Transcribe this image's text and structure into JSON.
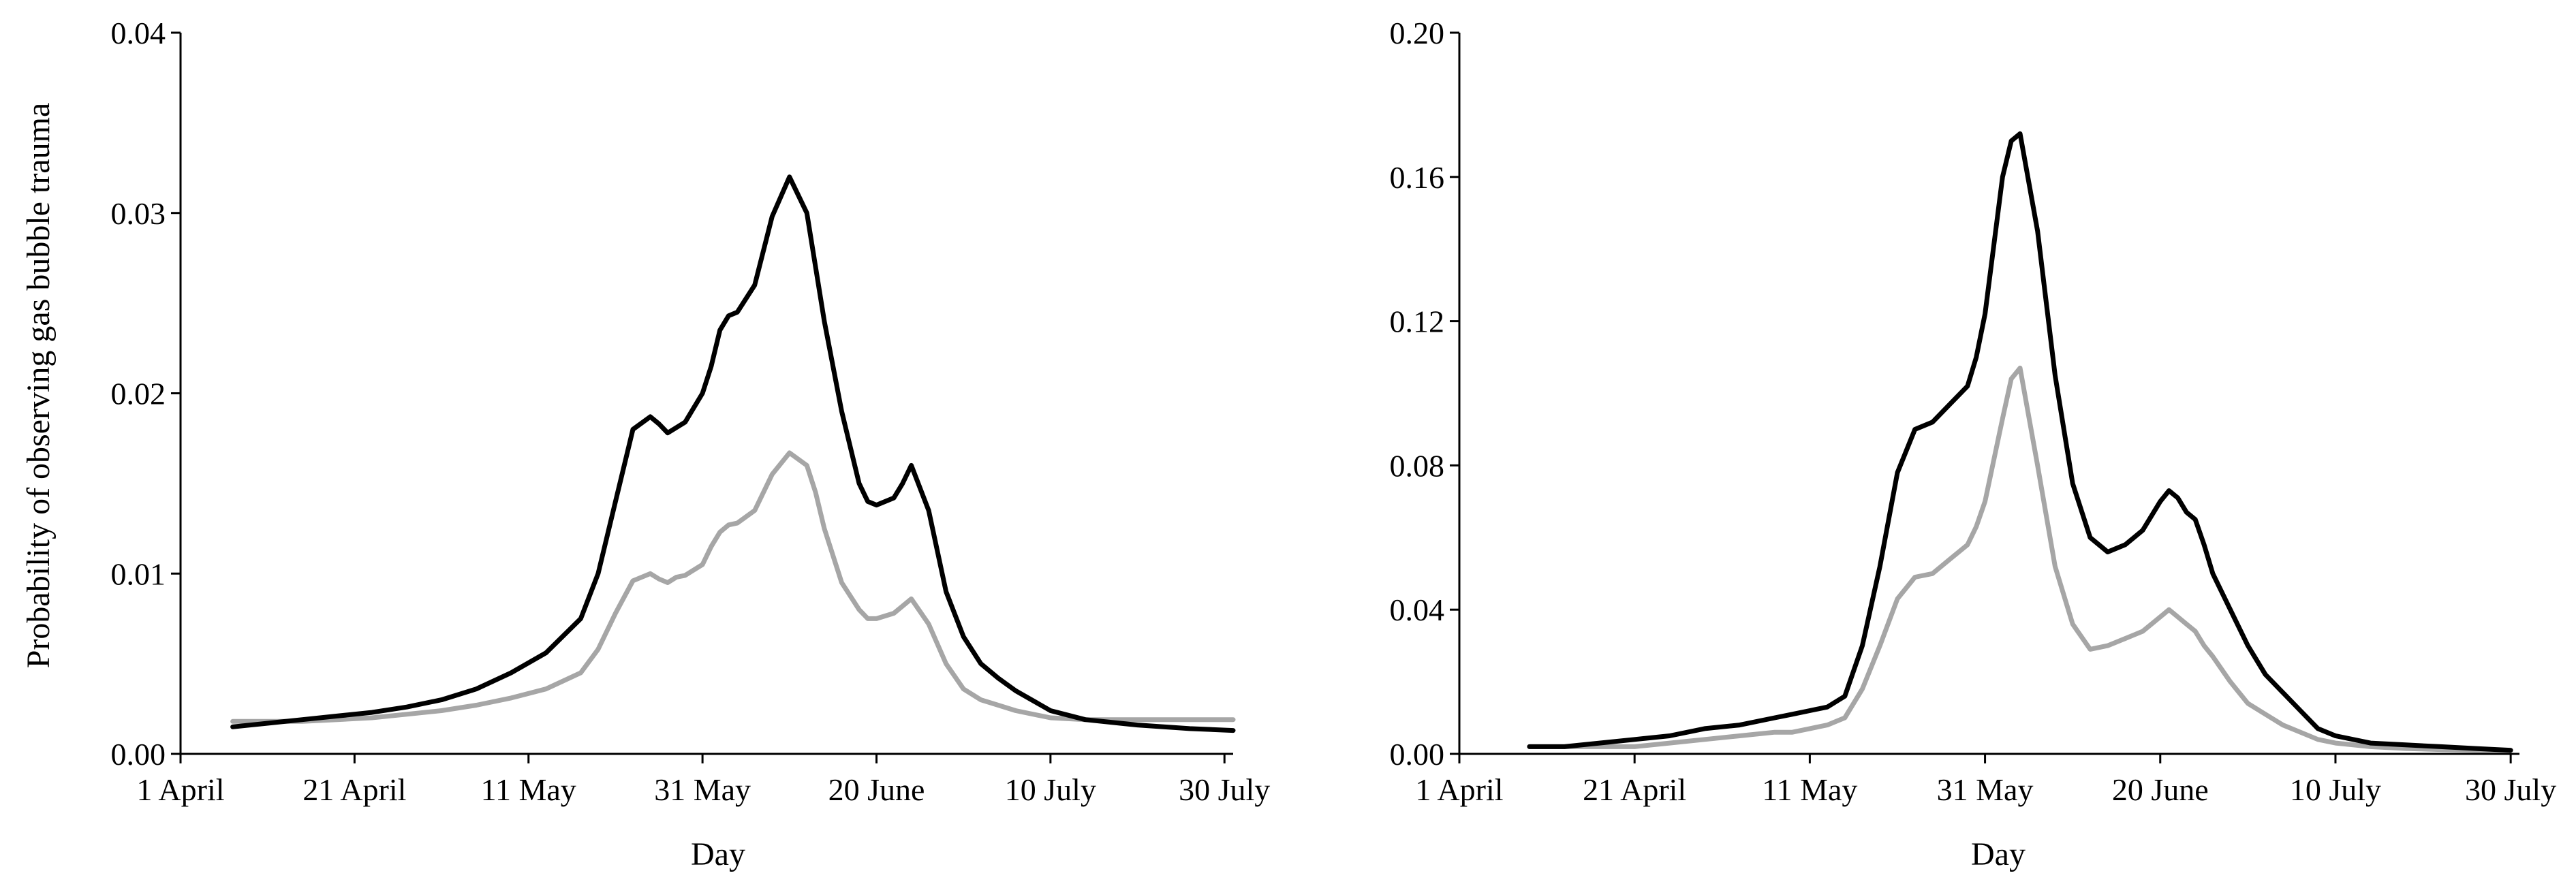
{
  "chart_data": [
    {
      "type": "line",
      "title": "",
      "xlabel": "Day",
      "ylabel": "Probability of observing gas bubble trauma",
      "x_ticks": [
        "1 April",
        "21 April",
        "11 May",
        "31 May",
        "20 June",
        "10 July",
        "30 July"
      ],
      "x_tick_days": [
        0,
        20,
        40,
        60,
        80,
        100,
        120
      ],
      "xlim": [
        0,
        121
      ],
      "y_ticks": [
        "0.00",
        "0.01",
        "0.02",
        "0.03",
        "0.04"
      ],
      "ylim": [
        0,
        0.04
      ],
      "grid": false,
      "legend": "none",
      "series": [
        {
          "color": "#000000",
          "x": [
            6,
            10,
            14,
            18,
            22,
            26,
            30,
            34,
            38,
            42,
            46,
            48,
            50,
            52,
            54,
            55,
            56,
            57,
            58,
            60,
            61,
            62,
            63,
            64,
            66,
            68,
            70,
            72,
            73,
            74,
            76,
            78,
            79,
            80,
            82,
            83,
            84,
            86,
            88,
            90,
            92,
            94,
            96,
            100,
            104,
            110,
            116,
            121
          ],
          "y": [
            0.0015,
            0.0017,
            0.0019,
            0.0021,
            0.0023,
            0.0026,
            0.003,
            0.0036,
            0.0045,
            0.0056,
            0.0075,
            0.01,
            0.014,
            0.018,
            0.0187,
            0.0183,
            0.0178,
            0.0181,
            0.0184,
            0.02,
            0.0215,
            0.0235,
            0.0243,
            0.0245,
            0.026,
            0.0298,
            0.032,
            0.03,
            0.027,
            0.024,
            0.019,
            0.015,
            0.014,
            0.0138,
            0.0142,
            0.015,
            0.016,
            0.0135,
            0.009,
            0.0065,
            0.005,
            0.0042,
            0.0035,
            0.0024,
            0.0019,
            0.0016,
            0.0014,
            0.0013
          ]
        },
        {
          "color": "#a6a6a6",
          "x": [
            6,
            10,
            14,
            18,
            22,
            26,
            30,
            34,
            38,
            42,
            46,
            48,
            50,
            52,
            54,
            55,
            56,
            57,
            58,
            60,
            61,
            62,
            63,
            64,
            66,
            68,
            70,
            72,
            73,
            74,
            76,
            78,
            79,
            80,
            82,
            83,
            84,
            86,
            88,
            90,
            92,
            94,
            96,
            100,
            104,
            110,
            116,
            121
          ],
          "y": [
            0.0018,
            0.0018,
            0.0018,
            0.0019,
            0.002,
            0.0022,
            0.0024,
            0.0027,
            0.0031,
            0.0036,
            0.0045,
            0.0058,
            0.0078,
            0.0096,
            0.01,
            0.0097,
            0.0095,
            0.0098,
            0.0099,
            0.0105,
            0.0115,
            0.0123,
            0.0127,
            0.0128,
            0.0135,
            0.0155,
            0.0167,
            0.016,
            0.0145,
            0.0125,
            0.0095,
            0.008,
            0.0075,
            0.0075,
            0.0078,
            0.0082,
            0.0086,
            0.0072,
            0.005,
            0.0036,
            0.003,
            0.0027,
            0.0024,
            0.002,
            0.0019,
            0.0019,
            0.0019,
            0.0019
          ]
        }
      ]
    },
    {
      "type": "line",
      "title": "",
      "xlabel": "Day",
      "ylabel": "",
      "x_ticks": [
        "1 April",
        "21 April",
        "11 May",
        "31 May",
        "20 June",
        "10 July",
        "30 July"
      ],
      "x_tick_days": [
        0,
        20,
        40,
        60,
        80,
        100,
        120
      ],
      "xlim": [
        0,
        121
      ],
      "y_ticks": [
        "0.00",
        "0.04",
        "0.08",
        "0.12",
        "0.16",
        "0.20"
      ],
      "ylim": [
        0,
        0.2
      ],
      "grid": false,
      "legend": "none",
      "series": [
        {
          "color": "#000000",
          "x": [
            8,
            12,
            16,
            20,
            24,
            28,
            32,
            36,
            38,
            40,
            42,
            44,
            46,
            48,
            50,
            52,
            54,
            56,
            58,
            59,
            60,
            62,
            63,
            64,
            66,
            68,
            70,
            72,
            74,
            76,
            77,
            78,
            80,
            81,
            82,
            83,
            84,
            85,
            86,
            88,
            90,
            92,
            94,
            96,
            98,
            100,
            104,
            108,
            112,
            116,
            120
          ],
          "y": [
            0.002,
            0.002,
            0.003,
            0.004,
            0.005,
            0.007,
            0.008,
            0.01,
            0.011,
            0.012,
            0.013,
            0.016,
            0.03,
            0.052,
            0.078,
            0.09,
            0.092,
            0.097,
            0.102,
            0.11,
            0.122,
            0.16,
            0.17,
            0.172,
            0.145,
            0.105,
            0.075,
            0.06,
            0.056,
            0.058,
            0.06,
            0.062,
            0.07,
            0.073,
            0.071,
            0.067,
            0.065,
            0.058,
            0.05,
            0.04,
            0.03,
            0.022,
            0.017,
            0.012,
            0.007,
            0.005,
            0.003,
            0.0025,
            0.002,
            0.0015,
            0.001
          ]
        },
        {
          "color": "#a6a6a6",
          "x": [
            8,
            12,
            16,
            20,
            24,
            28,
            32,
            36,
            38,
            40,
            42,
            44,
            46,
            48,
            50,
            52,
            54,
            56,
            58,
            59,
            60,
            62,
            63,
            64,
            66,
            68,
            70,
            72,
            74,
            76,
            77,
            78,
            80,
            81,
            82,
            83,
            84,
            85,
            86,
            88,
            90,
            92,
            94,
            96,
            98,
            100,
            104,
            108,
            112,
            116,
            120
          ],
          "y": [
            0.002,
            0.002,
            0.002,
            0.002,
            0.003,
            0.004,
            0.005,
            0.006,
            0.006,
            0.007,
            0.008,
            0.01,
            0.018,
            0.03,
            0.043,
            0.049,
            0.05,
            0.054,
            0.058,
            0.063,
            0.07,
            0.093,
            0.104,
            0.107,
            0.08,
            0.052,
            0.036,
            0.029,
            0.03,
            0.032,
            0.033,
            0.034,
            0.038,
            0.04,
            0.038,
            0.036,
            0.034,
            0.03,
            0.027,
            0.02,
            0.014,
            0.011,
            0.008,
            0.006,
            0.004,
            0.003,
            0.002,
            0.0015,
            0.0012,
            0.001,
            0.001
          ]
        }
      ]
    }
  ]
}
